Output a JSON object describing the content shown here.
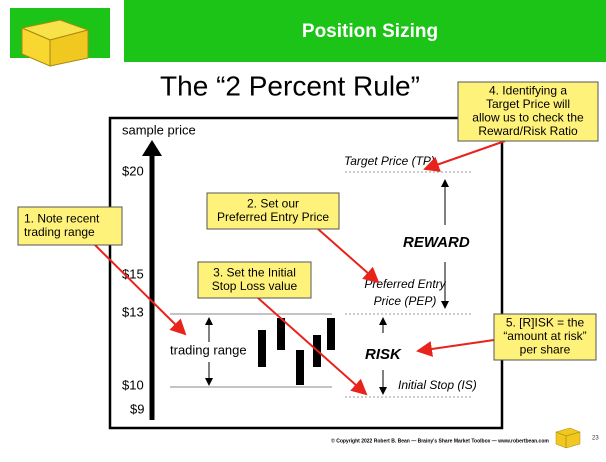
{
  "header": {
    "title": "Position Sizing"
  },
  "title": "The “2 Percent Rule”",
  "diagram": {
    "axis_label": "sample price",
    "price_labels": [
      "$20",
      "$15",
      "$13",
      "$10",
      "$9"
    ],
    "trading_range": "trading range",
    "target_price": "Target Price (TP)",
    "reward": "REWARD",
    "entry_price": [
      "Preferred Entry",
      "Price (PEP)"
    ],
    "risk": "RISK",
    "initial_stop": "Initial Stop (IS)"
  },
  "callouts": [
    {
      "lines": [
        "1. Note recent",
        "trading range"
      ]
    },
    {
      "lines": [
        "2. Set our",
        "Preferred Entry Price"
      ]
    },
    {
      "lines": [
        "3. Set the Initial",
        "Stop Loss value"
      ]
    },
    {
      "lines": [
        "4. Identifying a",
        "Target Price will",
        "allow us to check the",
        "Reward/Risk Ratio"
      ]
    },
    {
      "lines": [
        "5. [R]ISK = the",
        "“amount at risk”",
        "per share"
      ]
    }
  ],
  "footer": {
    "copyright": "© Copyright 2022 Robert B. Bean — Brainy's Share Market Toolbox — www.robertbean.com",
    "page_number": "23"
  }
}
